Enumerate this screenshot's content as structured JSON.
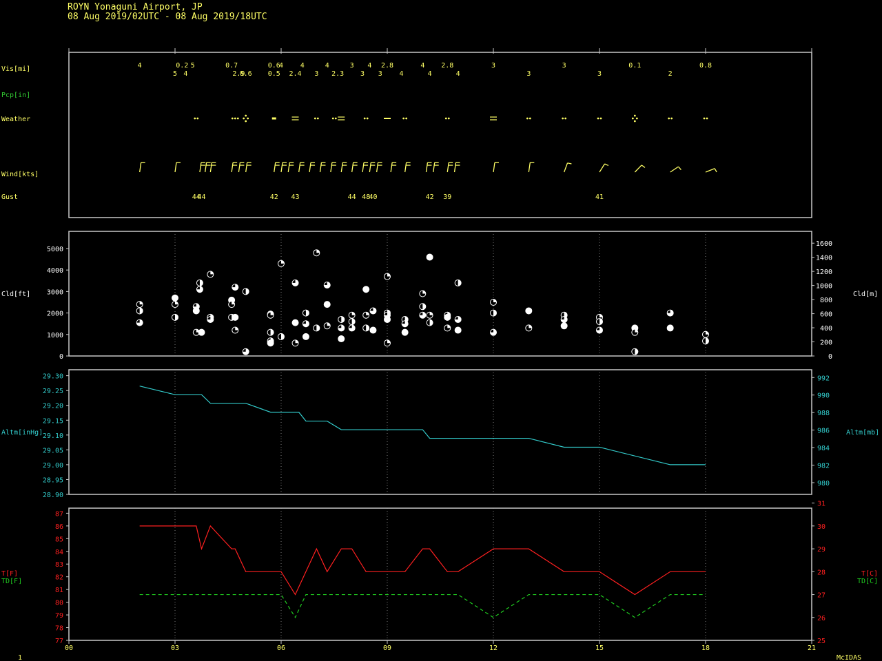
{
  "header": {
    "station": "ROYN  Yonaguni Airport,  JP",
    "period": "08 Aug 2019/02UTC - 08 Aug 2019/18UTC"
  },
  "footer": {
    "left_label": "1",
    "right_label": "McIDAS"
  },
  "labels": {
    "vis": "Vis[mi]",
    "pcp": "Pcp[in]",
    "weather": "Weather",
    "wind": "Wind[kts]",
    "gust": "Gust",
    "cld_ft": "Cld[ft]",
    "cld_m": "Cld[m]",
    "altm_inhg": "Altm[inHg]",
    "altm_mb": "Altm[mb]",
    "t_f": "T[F]",
    "td_f": "TD[F]",
    "t_c": "T[C]",
    "td_c": "TD[C]"
  },
  "colors": {
    "frame": "#c8c8c8",
    "grid": "#a0a0a0",
    "text": "#ffff66",
    "pcp_label": "#33cc33",
    "altm": "#33cccc",
    "temp": "#ff2020",
    "dewpoint": "#20cc20",
    "tick_left_cld": "#ffffff"
  },
  "chart_data": [
    {
      "type": "table",
      "panel": "observations",
      "visibility": [
        {
          "x": 2.0,
          "row": 0,
          "v": "4"
        },
        {
          "x": 3.0,
          "row": 1,
          "v": "5"
        },
        {
          "x": 3.2,
          "row": 0,
          "v": "0.2"
        },
        {
          "x": 3.3,
          "row": 1,
          "v": "4"
        },
        {
          "x": 3.5,
          "row": 0,
          "v": "5"
        },
        {
          "x": 4.6,
          "row": 0,
          "v": "0.7"
        },
        {
          "x": 4.8,
          "row": 1,
          "v": "2.9"
        },
        {
          "x": 5.0,
          "row": 1,
          "v": "0.6"
        },
        {
          "x": 5.8,
          "row": 0,
          "v": "0.6"
        },
        {
          "x": 6.0,
          "row": 0,
          "v": "4"
        },
        {
          "x": 5.8,
          "row": 1,
          "v": "0.5"
        },
        {
          "x": 6.4,
          "row": 1,
          "v": "2.4"
        },
        {
          "x": 6.6,
          "row": 0,
          "v": "4"
        },
        {
          "x": 7.0,
          "row": 1,
          "v": "3"
        },
        {
          "x": 7.3,
          "row": 0,
          "v": "4"
        },
        {
          "x": 7.6,
          "row": 1,
          "v": "2.3"
        },
        {
          "x": 8.0,
          "row": 0,
          "v": "3"
        },
        {
          "x": 8.3,
          "row": 1,
          "v": "3"
        },
        {
          "x": 8.5,
          "row": 0,
          "v": "4"
        },
        {
          "x": 8.8,
          "row": 1,
          "v": "3"
        },
        {
          "x": 9.0,
          "row": 0,
          "v": "2.8"
        },
        {
          "x": 9.4,
          "row": 1,
          "v": "4"
        },
        {
          "x": 10.0,
          "row": 0,
          "v": "4"
        },
        {
          "x": 10.2,
          "row": 1,
          "v": "4"
        },
        {
          "x": 10.7,
          "row": 0,
          "v": "2.8"
        },
        {
          "x": 11.0,
          "row": 1,
          "v": "4"
        },
        {
          "x": 12.0,
          "row": 0,
          "v": "3"
        },
        {
          "x": 13.0,
          "row": 1,
          "v": "3"
        },
        {
          "x": 14.0,
          "row": 0,
          "v": "3"
        },
        {
          "x": 15.0,
          "row": 1,
          "v": "3"
        },
        {
          "x": 16.0,
          "row": 0,
          "v": "0.1"
        },
        {
          "x": 17.0,
          "row": 1,
          "v": "2"
        },
        {
          "x": 18.0,
          "row": 0,
          "v": "0.8"
        }
      ],
      "weather": [
        {
          "x": 3.6,
          "sym": "rain"
        },
        {
          "x": 4.7,
          "sym": "rain3"
        },
        {
          "x": 5.0,
          "sym": "showers"
        },
        {
          "x": 5.8,
          "sym": "drizzle"
        },
        {
          "x": 6.4,
          "sym": "fog"
        },
        {
          "x": 7.0,
          "sym": "rain"
        },
        {
          "x": 7.7,
          "sym": "rainfog"
        },
        {
          "x": 8.4,
          "sym": "rain"
        },
        {
          "x": 9.0,
          "sym": "mist"
        },
        {
          "x": 9.5,
          "sym": "rain"
        },
        {
          "x": 10.7,
          "sym": "rain"
        },
        {
          "x": 12.0,
          "sym": "fog"
        },
        {
          "x": 13.0,
          "sym": "rain"
        },
        {
          "x": 14.0,
          "sym": "rain"
        },
        {
          "x": 15.0,
          "sym": "rain"
        },
        {
          "x": 16.0,
          "sym": "showers"
        },
        {
          "x": 17.0,
          "sym": "rain"
        },
        {
          "x": 18.0,
          "sym": "rain"
        }
      ],
      "wind_times": [
        2.0,
        3.0,
        3.7,
        3.85,
        4.0,
        4.6,
        4.8,
        5.0,
        5.8,
        6.0,
        6.2,
        6.5,
        6.8,
        7.1,
        7.4,
        7.7,
        8.0,
        8.3,
        8.5,
        8.7,
        9.1,
        9.5,
        10.1,
        10.3,
        10.7,
        10.9,
        12.0,
        13.0,
        14.0,
        15.0,
        16.0,
        17.0,
        18.0
      ],
      "gusts": [
        {
          "x": 3.6,
          "v": "44"
        },
        {
          "x": 3.75,
          "v": "44"
        },
        {
          "x": 5.8,
          "v": "42"
        },
        {
          "x": 6.4,
          "v": "43"
        },
        {
          "x": 8.0,
          "v": "44"
        },
        {
          "x": 8.4,
          "v": "48"
        },
        {
          "x": 8.6,
          "v": "40"
        },
        {
          "x": 10.2,
          "v": "42"
        },
        {
          "x": 10.7,
          "v": "39"
        },
        {
          "x": 15.0,
          "v": "41"
        }
      ]
    },
    {
      "type": "scatter",
      "panel": "cloud",
      "ylabel": "Cld[ft]",
      "y2label": "Cld[m]",
      "xlim": [
        0,
        21
      ],
      "ylim": [
        0,
        5800
      ],
      "yticks": [
        0,
        1000,
        2000,
        3000,
        4000,
        5000
      ],
      "y2ticks": [
        0,
        200,
        400,
        600,
        800,
        1000,
        1200,
        1400,
        1600
      ],
      "points": [
        [
          2.0,
          2400
        ],
        [
          2.0,
          2100
        ],
        [
          2.0,
          1550
        ],
        [
          3.0,
          2700
        ],
        [
          3.0,
          2400
        ],
        [
          3.0,
          1800
        ],
        [
          3.6,
          2300
        ],
        [
          3.6,
          2100
        ],
        [
          3.6,
          1100
        ],
        [
          3.7,
          3400
        ],
        [
          3.7,
          3100
        ],
        [
          3.75,
          1100
        ],
        [
          4.0,
          3800
        ],
        [
          4.0,
          1800
        ],
        [
          4.0,
          1700
        ],
        [
          4.6,
          2600
        ],
        [
          4.6,
          2400
        ],
        [
          4.6,
          1800
        ],
        [
          4.7,
          3200
        ],
        [
          4.7,
          1800
        ],
        [
          4.7,
          1200
        ],
        [
          5.0,
          3000
        ],
        [
          5.0,
          200
        ],
        [
          5.7,
          1950
        ],
        [
          5.7,
          1900
        ],
        [
          5.7,
          1100
        ],
        [
          5.7,
          700
        ],
        [
          5.7,
          600
        ],
        [
          6.0,
          4300
        ],
        [
          6.0,
          900
        ],
        [
          6.4,
          3400
        ],
        [
          6.4,
          1550
        ],
        [
          6.4,
          600
        ],
        [
          6.7,
          2000
        ],
        [
          6.7,
          1500
        ],
        [
          6.7,
          900
        ],
        [
          7.0,
          4800
        ],
        [
          7.0,
          1300
        ],
        [
          7.3,
          3300
        ],
        [
          7.3,
          2400
        ],
        [
          7.3,
          1400
        ],
        [
          7.7,
          1700
        ],
        [
          7.7,
          1300
        ],
        [
          7.7,
          800
        ],
        [
          8.0,
          1900
        ],
        [
          8.0,
          1600
        ],
        [
          8.0,
          1300
        ],
        [
          8.4,
          3100
        ],
        [
          8.4,
          1900
        ],
        [
          8.4,
          1300
        ],
        [
          8.6,
          2100
        ],
        [
          8.6,
          1200
        ],
        [
          9.0,
          3700
        ],
        [
          9.0,
          2000
        ],
        [
          9.0,
          1900
        ],
        [
          9.0,
          1700
        ],
        [
          9.0,
          600
        ],
        [
          9.5,
          1700
        ],
        [
          9.5,
          1500
        ],
        [
          9.5,
          1100
        ],
        [
          10.0,
          2900
        ],
        [
          10.0,
          2300
        ],
        [
          10.0,
          1900
        ],
        [
          10.2,
          4600
        ],
        [
          10.2,
          1900
        ],
        [
          10.2,
          1550
        ],
        [
          10.7,
          1900
        ],
        [
          10.7,
          1800
        ],
        [
          10.7,
          1300
        ],
        [
          11.0,
          3400
        ],
        [
          11.0,
          1700
        ],
        [
          11.0,
          1200
        ],
        [
          12.0,
          2500
        ],
        [
          12.0,
          2000
        ],
        [
          12.0,
          1100
        ],
        [
          13.0,
          2100
        ],
        [
          13.0,
          1300
        ],
        [
          14.0,
          1900
        ],
        [
          14.0,
          1700
        ],
        [
          14.0,
          1400
        ],
        [
          15.0,
          1800
        ],
        [
          15.0,
          1600
        ],
        [
          15.0,
          1200
        ],
        [
          16.0,
          1300
        ],
        [
          16.0,
          1100
        ],
        [
          16.0,
          200
        ],
        [
          17.0,
          2000
        ],
        [
          17.0,
          1300
        ],
        [
          18.0,
          1000
        ],
        [
          18.0,
          700
        ]
      ]
    },
    {
      "type": "line",
      "panel": "altimeter",
      "ylabel": "Altm[inHg]",
      "y2label": "Altm[mb]",
      "xlim": [
        0,
        21
      ],
      "ylim": [
        28.9,
        29.32
      ],
      "yticks": [
        "28.90",
        "28.95",
        "29.00",
        "29.05",
        "29.10",
        "29.15",
        "29.20",
        "29.25",
        "29.30"
      ],
      "y2ticks": [
        980,
        982,
        984,
        986,
        988,
        990,
        992
      ],
      "x": [
        2.0,
        3.0,
        3.75,
        4.0,
        4.6,
        5.0,
        5.7,
        6.5,
        6.7,
        7.3,
        7.7,
        10.0,
        10.2,
        13.0,
        14.0,
        15.0,
        17.0,
        18.0
      ],
      "values": [
        29.265,
        29.236,
        29.236,
        29.207,
        29.207,
        29.207,
        29.177,
        29.177,
        29.147,
        29.147,
        29.118,
        29.118,
        29.089,
        29.089,
        29.059,
        29.059,
        29.0,
        29.0
      ]
    },
    {
      "type": "line",
      "panel": "temperature",
      "ylabel": "T[F]",
      "y2label": "T[C]",
      "xlim": [
        0,
        21
      ],
      "ylim": [
        77,
        87.4
      ],
      "xticks": [
        "00",
        "03",
        "06",
        "09",
        "12",
        "15",
        "18",
        "21"
      ],
      "yticks": [
        77,
        78,
        79,
        80,
        81,
        82,
        83,
        84,
        85,
        86,
        87
      ],
      "y2ticks": [
        25,
        26,
        27,
        28,
        29,
        30,
        31
      ],
      "series": [
        {
          "name": "T[F]",
          "x": [
            2.0,
            3.0,
            3.6,
            3.75,
            4.0,
            4.6,
            4.7,
            5.0,
            5.7,
            6.0,
            6.4,
            6.7,
            7.0,
            7.3,
            7.7,
            8.0,
            8.4,
            9.0,
            9.5,
            10.0,
            10.2,
            10.7,
            11.0,
            12.0,
            13.0,
            14.0,
            15.0,
            16.0,
            17.0,
            18.0
          ],
          "values": [
            86.0,
            86.0,
            86.0,
            84.2,
            86.0,
            84.2,
            84.2,
            82.4,
            82.4,
            82.4,
            80.6,
            82.4,
            84.2,
            82.4,
            84.2,
            84.2,
            82.4,
            82.4,
            82.4,
            84.2,
            84.2,
            82.4,
            82.4,
            84.2,
            84.2,
            82.4,
            82.4,
            80.6,
            82.4,
            82.4
          ]
        },
        {
          "name": "TD[F]",
          "x": [
            2.0,
            6.0,
            6.4,
            6.7,
            11.0,
            12.0,
            13.0,
            15.0,
            16.0,
            17.0,
            18.0
          ],
          "values": [
            80.6,
            80.6,
            78.8,
            80.6,
            80.6,
            78.8,
            80.6,
            80.6,
            78.8,
            80.6,
            80.6
          ]
        }
      ]
    }
  ]
}
